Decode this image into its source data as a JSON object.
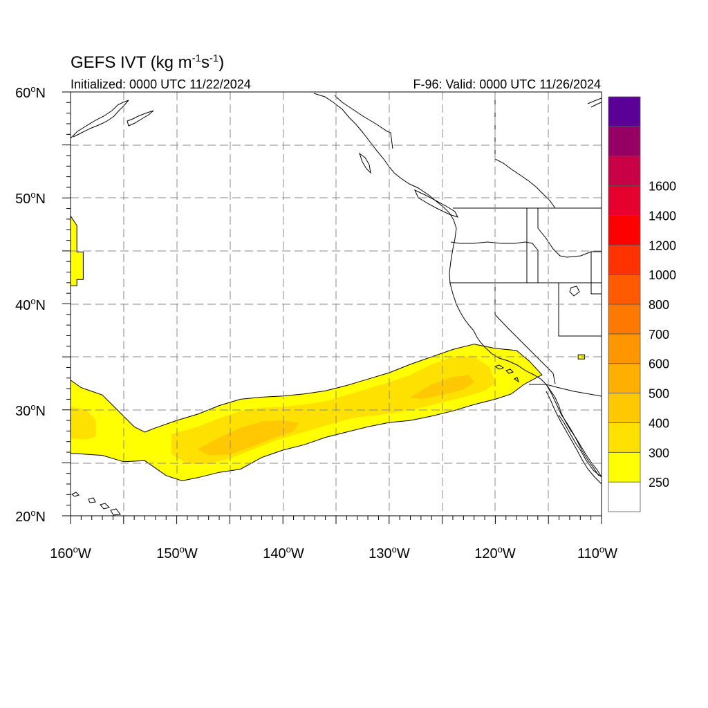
{
  "title": {
    "main": "GEFS IVT (kg m",
    "unit_exp1": "-1",
    "unit_mid": "s",
    "unit_exp2": "-1",
    "unit_close": ")"
  },
  "subtitle": {
    "left": "Initialized: 0000 UTC 11/22/2024",
    "right": "F-96: Valid: 0000 UTC 11/26/2024"
  },
  "map": {
    "lon_range": [
      -160,
      -110
    ],
    "lat_range": [
      20,
      60
    ],
    "grid": true,
    "grid_style": "dashed",
    "lat_labels": [
      {
        "value": 60,
        "text": "60",
        "sup": "o",
        "suffix": "N"
      },
      {
        "value": 50,
        "text": "50",
        "sup": "o",
        "suffix": "N"
      },
      {
        "value": 40,
        "text": "40",
        "sup": "o",
        "suffix": "N"
      },
      {
        "value": 30,
        "text": "30",
        "sup": "o",
        "suffix": "N"
      },
      {
        "value": 20,
        "text": "20",
        "sup": "o",
        "suffix": "N"
      }
    ],
    "lon_labels": [
      {
        "value": -160,
        "text": "160",
        "sup": "o",
        "suffix": "W"
      },
      {
        "value": -150,
        "text": "150",
        "sup": "o",
        "suffix": "W"
      },
      {
        "value": -140,
        "text": "140",
        "sup": "o",
        "suffix": "W"
      },
      {
        "value": -130,
        "text": "130",
        "sup": "o",
        "suffix": "W"
      },
      {
        "value": -120,
        "text": "120",
        "sup": "o",
        "suffix": "W"
      },
      {
        "value": -110,
        "text": "110",
        "sup": "o",
        "suffix": "W"
      }
    ]
  },
  "colorbar": {
    "colors": [
      "#ffffff",
      "#ffff00",
      "#ffe100",
      "#ffc800",
      "#ffaf00",
      "#ff9600",
      "#ff7800",
      "#ff5a00",
      "#ff3200",
      "#ff0000",
      "#e6002d",
      "#c80046",
      "#960064",
      "#5a0096"
    ],
    "labels": [
      "250",
      "300",
      "400",
      "500",
      "600",
      "700",
      "800",
      "1000",
      "1200",
      "1400",
      "1600"
    ]
  },
  "chart_data": {
    "type": "heatmap",
    "variable": "GEFS IVT",
    "units": "kg m-1 s-1",
    "xlim": [
      -160,
      -110
    ],
    "ylim": [
      20,
      60
    ],
    "levels": [
      250,
      300,
      400,
      500,
      600,
      700,
      800,
      1000,
      1200,
      1400,
      1600
    ],
    "regions": [
      {
        "level": 250,
        "polygon_lonlat": [
          [
            -160,
            32.8
          ],
          [
            -159,
            32.1
          ],
          [
            -157,
            31.4
          ],
          [
            -156,
            30.4
          ],
          [
            -155,
            29.4
          ],
          [
            -154,
            28.4
          ],
          [
            -153,
            27.9
          ],
          [
            -152,
            28.3
          ],
          [
            -150,
            29.0
          ],
          [
            -148,
            29.6
          ],
          [
            -146,
            30.4
          ],
          [
            -144,
            31.0
          ],
          [
            -142,
            31.2
          ],
          [
            -140,
            31.3
          ],
          [
            -138,
            31.5
          ],
          [
            -136,
            31.8
          ],
          [
            -134,
            32.3
          ],
          [
            -132,
            32.9
          ],
          [
            -130,
            33.5
          ],
          [
            -128,
            34.3
          ],
          [
            -126,
            35.0
          ],
          [
            -124,
            35.7
          ],
          [
            -122,
            36.2
          ],
          [
            -120,
            35.8
          ],
          [
            -118,
            35.6
          ],
          [
            -116.8,
            34.6
          ],
          [
            -115.6,
            33.3
          ],
          [
            -116.2,
            33.0
          ],
          [
            -117.3,
            32.4
          ],
          [
            -118.5,
            31.5
          ],
          [
            -120,
            31.0
          ],
          [
            -122,
            30.5
          ],
          [
            -124,
            29.9
          ],
          [
            -126,
            29.4
          ],
          [
            -128,
            29.0
          ],
          [
            -130,
            28.8
          ],
          [
            -132,
            28.4
          ],
          [
            -134,
            27.9
          ],
          [
            -136,
            27.4
          ],
          [
            -138,
            26.7
          ],
          [
            -140,
            26.2
          ],
          [
            -142,
            25.5
          ],
          [
            -144,
            24.4
          ],
          [
            -146,
            24.1
          ],
          [
            -148,
            23.6
          ],
          [
            -149.5,
            23.3
          ],
          [
            -151,
            23.8
          ],
          [
            -153,
            25.2
          ],
          [
            -155,
            25.1
          ],
          [
            -157,
            25.7
          ],
          [
            -160,
            25.9
          ]
        ]
      },
      {
        "level": 250,
        "polygon_lonlat": [
          [
            -160.0,
            48.3
          ],
          [
            -159.4,
            47.4
          ],
          [
            -159.4,
            44.9
          ],
          [
            -158.8,
            44.9
          ],
          [
            -158.8,
            42.3
          ],
          [
            -159.4,
            42.3
          ],
          [
            -159.4,
            41.7
          ],
          [
            -160.0,
            41.7
          ]
        ]
      },
      {
        "level": 250,
        "polygon_lonlat": [
          [
            -112.2,
            35.2
          ],
          [
            -111.6,
            35.2
          ],
          [
            -111.6,
            34.8
          ],
          [
            -112.2,
            34.8
          ]
        ]
      },
      {
        "level": 300,
        "polygon_lonlat": [
          [
            -160,
            30.3
          ],
          [
            -158.5,
            30.0
          ],
          [
            -157.6,
            29.0
          ],
          [
            -157.6,
            27.5
          ],
          [
            -158.5,
            27.2
          ],
          [
            -160,
            27.3
          ]
        ]
      },
      {
        "level": 300,
        "polygon_lonlat": [
          [
            -150.5,
            27.7
          ],
          [
            -148,
            28.4
          ],
          [
            -146,
            29.2
          ],
          [
            -144,
            29.9
          ],
          [
            -142,
            30.2
          ],
          [
            -140,
            30.3
          ],
          [
            -138,
            30.5
          ],
          [
            -136,
            30.8
          ],
          [
            -134,
            31.4
          ],
          [
            -132,
            32.0
          ],
          [
            -130,
            32.6
          ],
          [
            -128,
            33.3
          ],
          [
            -126,
            34.3
          ],
          [
            -124,
            35.0
          ],
          [
            -122,
            35.0
          ],
          [
            -120.5,
            34.0
          ],
          [
            -120,
            32.5
          ],
          [
            -121,
            31.8
          ],
          [
            -123,
            31.2
          ],
          [
            -125,
            30.7
          ],
          [
            -127,
            30.2
          ],
          [
            -129,
            29.8
          ],
          [
            -131,
            29.5
          ],
          [
            -133,
            29.3
          ],
          [
            -135,
            28.8
          ],
          [
            -137,
            28.2
          ],
          [
            -139,
            27.6
          ],
          [
            -141,
            27.0
          ],
          [
            -143,
            26.2
          ],
          [
            -145,
            25.4
          ],
          [
            -147,
            24.9
          ],
          [
            -149,
            24.9
          ],
          [
            -150.5,
            25.8
          ]
        ]
      },
      {
        "level": 400,
        "polygon_lonlat": [
          [
            -148,
            26.3
          ],
          [
            -146,
            27.4
          ],
          [
            -144,
            28.3
          ],
          [
            -142,
            28.9
          ],
          [
            -140,
            29.0
          ],
          [
            -138.5,
            28.8
          ],
          [
            -139,
            28.0
          ],
          [
            -141,
            27.3
          ],
          [
            -143,
            26.5
          ],
          [
            -145,
            25.8
          ],
          [
            -147,
            25.7
          ]
        ]
      },
      {
        "level": 400,
        "polygon_lonlat": [
          [
            -128,
            31.2
          ],
          [
            -126,
            32.4
          ],
          [
            -124,
            33.1
          ],
          [
            -122.5,
            33.3
          ],
          [
            -122,
            32.6
          ],
          [
            -123,
            31.9
          ],
          [
            -125,
            31.4
          ],
          [
            -127,
            31.0
          ]
        ]
      }
    ],
    "annotations": [
      "Initialized: 0000 UTC 11/22/2024",
      "F-96: Valid: 0000 UTC 11/26/2024"
    ]
  }
}
